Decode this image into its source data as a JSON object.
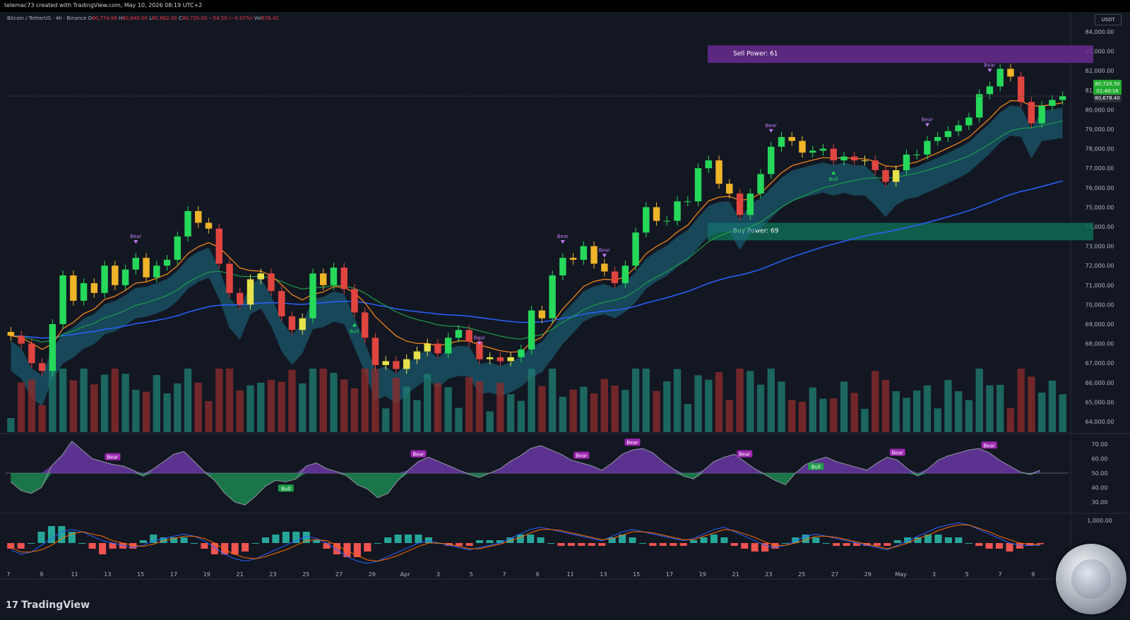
{
  "header": {
    "credit": "telemac73 created with TradingView.com, May 10, 2026 08:19 UTC+2"
  },
  "legend": {
    "symbol": "Bitcoin / TetherUS · 4h · Binance",
    "open_label": "O",
    "open": "80,774.99",
    "high_label": "H",
    "high": "80,840.00",
    "low_label": "L",
    "low": "80,682.00",
    "close_label": "C",
    "close": "80,720.50",
    "change": "−54.50 (−0.07%)",
    "vol_label": "Vol",
    "vol": "676.42"
  },
  "quote_currency": "USDT",
  "last_price": {
    "price": "80,720.50",
    "countdown": "01:40:16",
    "line_value": "80,678.40",
    "color": "#22ab2f"
  },
  "zones": {
    "sell_label": "Sell Power: 61",
    "sell_color": "#6a2a8f",
    "buy_label": "Buy Power: 69",
    "buy_color": "#0f6b52"
  },
  "signals": {
    "bear": "Bear",
    "bull": "Bull"
  },
  "brand": "TradingView",
  "chart_data": [
    {
      "type": "candlestick",
      "title": "Bitcoin / TetherUS · 4h · Binance",
      "y_ticks": [
        "84,000.00",
        "83,000.00",
        "82,000.00",
        "81,000.00",
        "80,000.00",
        "79,000.00",
        "78,000.00",
        "77,000.00",
        "76,000.00",
        "75,000.00",
        "74,000.00",
        "73,000.00",
        "72,000.00",
        "71,000.00",
        "70,000.00",
        "69,000.00",
        "68,000.00",
        "67,000.00",
        "66,000.00",
        "65,000.00",
        "64,000.00"
      ],
      "ylim": [
        63500,
        84500
      ],
      "x_ticks": [
        "7",
        "9",
        "11",
        "13",
        "15",
        "17",
        "19",
        "21",
        "23",
        "25",
        "27",
        "29",
        "Apr",
        "3",
        "5",
        "7",
        "9",
        "11",
        "13",
        "15",
        "17",
        "19",
        "21",
        "23",
        "25",
        "27",
        "29",
        "May",
        "3",
        "5",
        "7",
        "9"
      ],
      "closes": [
        68400,
        68000,
        67000,
        66600,
        69000,
        71500,
        70200,
        71100,
        70600,
        72000,
        71000,
        71800,
        72400,
        71400,
        72000,
        72300,
        73500,
        74800,
        74200,
        73900,
        72100,
        70600,
        70000,
        71300,
        71600,
        70700,
        69400,
        68700,
        69300,
        71600,
        71000,
        71900,
        70800,
        69600,
        68300,
        66900,
        67100,
        66700,
        67200,
        67600,
        68000,
        67500,
        68300,
        68700,
        68100,
        67200,
        67300,
        67100,
        67300,
        67700,
        69700,
        69300,
        71500,
        72400,
        72300,
        73000,
        72100,
        71700,
        71100,
        72000,
        73700,
        75000,
        74300,
        74300,
        75300,
        75300,
        77000,
        77400,
        76200,
        75700,
        74600,
        75700,
        76700,
        78100,
        78600,
        78400,
        77800,
        77900,
        78000,
        77400,
        77600,
        77400,
        77400,
        76900,
        76300,
        76900,
        77700,
        77700,
        78400,
        78600,
        78900,
        79200,
        79600,
        80800,
        81200,
        82100,
        81700,
        80400,
        79300,
        80200,
        80500,
        80700
      ],
      "support_zone": [
        73300,
        74200
      ],
      "resistance_zone": [
        82400,
        83300
      ]
    },
    {
      "type": "line",
      "title": "RSI",
      "y_ticks": [
        "70.00",
        "60.00",
        "50.00",
        "40.00",
        "30.00"
      ],
      "ylim": [
        25,
        75
      ],
      "values": [
        44,
        38,
        36,
        40,
        55,
        62,
        72,
        66,
        60,
        58,
        56,
        55,
        52,
        48,
        53,
        58,
        63,
        65,
        58,
        51,
        45,
        36,
        30,
        28,
        34,
        41,
        45,
        44,
        46,
        55,
        57,
        53,
        51,
        48,
        42,
        39,
        33,
        36,
        45,
        52,
        58,
        61,
        58,
        55,
        52,
        49,
        47,
        50,
        53,
        58,
        62,
        67,
        69,
        66,
        63,
        59,
        57,
        55,
        52,
        57,
        63,
        66,
        67,
        64,
        58,
        53,
        48,
        46,
        52,
        58,
        61,
        63,
        58,
        53,
        49,
        45,
        42,
        50,
        56,
        59,
        61,
        58,
        56,
        54,
        52,
        57,
        61,
        59,
        53,
        48,
        53,
        59,
        62,
        64,
        66,
        67,
        64,
        59,
        55,
        51,
        49,
        52
      ]
    },
    {
      "type": "line",
      "title": "MACD",
      "y_ticks": [
        "1,000.00"
      ],
      "series": [
        {
          "name": "",
          "values": [
            -300,
            -500,
            -400,
            -100,
            200,
            500,
            600,
            500,
            300,
            100,
            0,
            -100,
            -200,
            -100,
            100,
            200,
            300,
            400,
            300,
            100,
            -200,
            -500,
            -700,
            -800,
            -700,
            -500,
            -300,
            -100,
            100,
            300,
            200,
            0,
            -300,
            -600,
            -800,
            -900,
            -800,
            -600,
            -400,
            -200,
            0,
            100,
            0,
            -100,
            -200,
            -300,
            -200,
            -100,
            0,
            200,
            400,
            600,
            700,
            600,
            500,
            400,
            300,
            200,
            100,
            300,
            500,
            600,
            500,
            400,
            300,
            200,
            100,
            200,
            400,
            600,
            700,
            500,
            300,
            100,
            -100,
            -200,
            -100,
            100,
            300,
            400,
            300,
            200,
            100,
            0,
            -100,
            -200,
            -300,
            -100,
            100,
            300,
            500,
            700,
            800,
            900,
            800,
            600,
            400,
            200,
            0,
            -100,
            -100,
            -100
          ]
        },
        {
          "name": "",
          "values": [
            -200,
            -400,
            -400,
            -300,
            -100,
            200,
            400,
            500,
            400,
            300,
            100,
            0,
            -100,
            -150,
            -50,
            100,
            200,
            300,
            300,
            200,
            0,
            -300,
            -500,
            -650,
            -700,
            -600,
            -450,
            -300,
            -100,
            100,
            150,
            100,
            -100,
            -350,
            -550,
            -750,
            -800,
            -700,
            -550,
            -350,
            -150,
            0,
            0,
            -50,
            -150,
            -250,
            -250,
            -150,
            -50,
            100,
            250,
            450,
            600,
            600,
            550,
            450,
            350,
            250,
            150,
            200,
            350,
            500,
            500,
            450,
            350,
            250,
            150,
            150,
            300,
            450,
            600,
            550,
            400,
            250,
            50,
            -100,
            -100,
            0,
            150,
            300,
            300,
            250,
            150,
            50,
            -50,
            -150,
            -250,
            -150,
            0,
            200,
            350,
            550,
            700,
            800,
            800,
            650,
            500,
            300,
            150,
            0,
            -50,
            -80
          ]
        }
      ]
    }
  ]
}
